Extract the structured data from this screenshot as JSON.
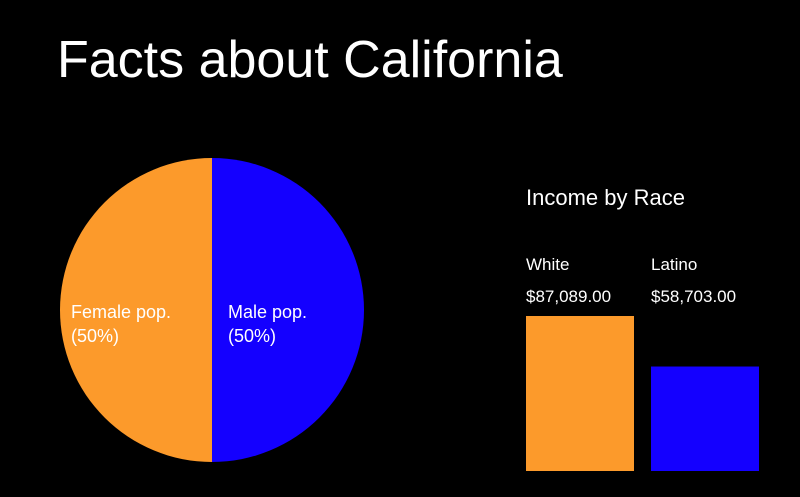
{
  "title": "Facts about California",
  "colors": {
    "background": "#000000",
    "text": "#ffffff",
    "orange": "#fc9a2b",
    "blue": "#1400ff"
  },
  "chart_data": [
    {
      "type": "pie",
      "slices": [
        {
          "label": "Female pop.",
          "percent_label": "(50%)",
          "value": 50,
          "color": "#fc9a2b"
        },
        {
          "label": "Male pop.",
          "percent_label": "(50%)",
          "value": 50,
          "color": "#1400ff"
        }
      ]
    },
    {
      "type": "bar",
      "title": "Income by Race",
      "categories": [
        "White",
        "Latino"
      ],
      "values": [
        87089,
        58703
      ],
      "value_labels": [
        "$87,089.00",
        "$58,703.00"
      ],
      "colors": [
        "#fc9a2b",
        "#1400ff"
      ]
    }
  ]
}
